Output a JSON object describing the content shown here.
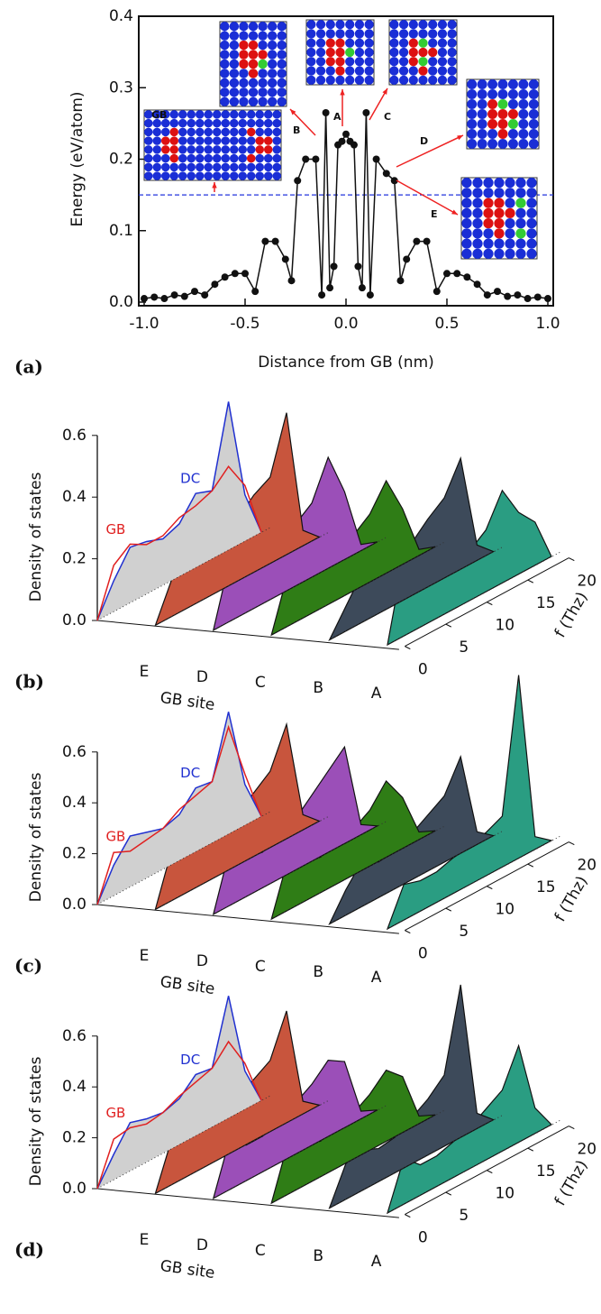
{
  "chart_data": [
    {
      "type": "line",
      "panel_label": "(a)",
      "xlabel": "Distance from GB (nm)",
      "ylabel": "Energy (eV/atom)",
      "x": [
        -1.0,
        -0.95,
        -0.9,
        -0.85,
        -0.8,
        -0.75,
        -0.7,
        -0.65,
        -0.6,
        -0.55,
        -0.5,
        -0.45,
        -0.4,
        -0.35,
        -0.3,
        -0.27,
        -0.24,
        -0.2,
        -0.15,
        -0.12,
        -0.1,
        -0.08,
        -0.06,
        -0.04,
        -0.02,
        0.0,
        0.02,
        0.04,
        0.06,
        0.08,
        0.1,
        0.12,
        0.15,
        0.2,
        0.24,
        0.27,
        0.3,
        0.35,
        0.4,
        0.45,
        0.5,
        0.55,
        0.6,
        0.65,
        0.7,
        0.75,
        0.8,
        0.85,
        0.9,
        0.95,
        1.0
      ],
      "series": [
        {
          "color": "#111111",
          "values": [
            0.005,
            0.007,
            0.005,
            0.01,
            0.008,
            0.015,
            0.01,
            0.025,
            0.035,
            0.04,
            0.04,
            0.015,
            0.085,
            0.085,
            0.06,
            0.03,
            0.17,
            0.2,
            0.2,
            0.01,
            0.265,
            0.02,
            0.05,
            0.22,
            0.225,
            0.235,
            0.225,
            0.22,
            0.05,
            0.02,
            0.265,
            0.01,
            0.2,
            0.18,
            0.17,
            0.03,
            0.06,
            0.085,
            0.085,
            0.015,
            0.04,
            0.04,
            0.035,
            0.025,
            0.01,
            0.015,
            0.008,
            0.01,
            0.005,
            0.007,
            0.005
          ]
        }
      ],
      "hline": 0.15,
      "hline_color": "#2233dd",
      "xlim": [
        -1.0,
        1.0
      ],
      "ylim": [
        0,
        0.4
      ],
      "xticks": [
        {
          "value": -1,
          "label": "-1.0"
        },
        -0.5,
        {
          "value": 0,
          "label": "0.0"
        },
        0.5,
        {
          "value": 1,
          "label": "1.0"
        }
      ],
      "yticks": [
        {
          "value": 0,
          "label": "0.0"
        },
        0.1,
        0.2,
        0.3,
        0.4
      ],
      "annotations": [
        "GB",
        "A",
        "B",
        "C",
        "D",
        "E"
      ]
    },
    {
      "type": "waterfall",
      "panel_label": "(b)",
      "ylabel": "Density of states",
      "category_label": "GB site",
      "xlabel": "f (Thz)",
      "categories": [
        "E",
        "D",
        "C",
        "B",
        "A"
      ],
      "x": [
        0,
        2,
        4,
        6,
        8,
        10,
        12,
        14,
        16,
        18,
        20
      ],
      "ylim": [
        0,
        0.6
      ],
      "yticks": [
        {
          "value": 0,
          "label": "0.0"
        },
        0.2,
        0.4,
        0.6
      ],
      "xticks": [
        0,
        5,
        10,
        15,
        20
      ],
      "series": [
        {
          "name": "GB",
          "color": "#e02020",
          "values": [
            0,
            0.15,
            0.19,
            0.16,
            0.16,
            0.19,
            0.2,
            0.22,
            0.27,
            0.18,
            0
          ]
        },
        {
          "name": "DC",
          "color": "#2030d0",
          "fill": "#d0d0d0",
          "values": [
            0,
            0.1,
            0.18,
            0.17,
            0.15,
            0.17,
            0.24,
            0.22,
            0.48,
            0.15,
            0
          ]
        },
        {
          "color": "#c8553d",
          "values": [
            0,
            0.12,
            0.15,
            0.14,
            0.16,
            0.2,
            0.25,
            0.28,
            0.46,
            0.05,
            0
          ]
        },
        {
          "color": "#9b4fb8",
          "values": [
            0,
            0.2,
            0.12,
            0.14,
            0.16,
            0.2,
            0.24,
            0.36,
            0.22,
            0.02,
            0
          ]
        },
        {
          "color": "#2f7d16",
          "values": [
            0,
            0.17,
            0.16,
            0.13,
            0.15,
            0.18,
            0.22,
            0.3,
            0.18,
            0.02,
            0
          ]
        },
        {
          "color": "#3d4a5a",
          "values": [
            0,
            0.08,
            0.16,
            0.12,
            0.14,
            0.17,
            0.22,
            0.26,
            0.36,
            0.05,
            0
          ]
        },
        {
          "color": "#2a9d82",
          "values": [
            0,
            0.26,
            0.14,
            0.12,
            0.14,
            0.16,
            0.2,
            0.3,
            0.2,
            0.14,
            0
          ]
        }
      ]
    },
    {
      "type": "waterfall",
      "panel_label": "(c)",
      "ylabel": "Density of states",
      "category_label": "GB site",
      "xlabel": "f (Thz)",
      "categories": [
        "E",
        "D",
        "C",
        "B",
        "A"
      ],
      "x": [
        0,
        2,
        4,
        6,
        8,
        10,
        12,
        14,
        16,
        18,
        20
      ],
      "ylim": [
        0,
        0.6
      ],
      "yticks": [
        {
          "value": 0,
          "label": "0.0"
        },
        0.2,
        0.4,
        0.6
      ],
      "xticks": [
        0,
        5,
        10,
        15,
        20
      ],
      "series": [
        {
          "name": "GB",
          "color": "#e02020",
          "values": [
            0,
            0.17,
            0.14,
            0.15,
            0.16,
            0.2,
            0.22,
            0.24,
            0.42,
            0.2,
            0
          ]
        },
        {
          "name": "DC",
          "color": "#2030d0",
          "fill": "#d0d0d0",
          "values": [
            0,
            0.12,
            0.2,
            0.18,
            0.16,
            0.18,
            0.25,
            0.24,
            0.48,
            0.16,
            0
          ]
        },
        {
          "color": "#c8553d",
          "values": [
            0,
            0.2,
            0.17,
            0.15,
            0.17,
            0.2,
            0.25,
            0.3,
            0.45,
            0.06,
            0
          ]
        },
        {
          "color": "#9b4fb8",
          "values": [
            0,
            0.22,
            0.15,
            0.14,
            0.17,
            0.2,
            0.26,
            0.32,
            0.38,
            0.04,
            0
          ]
        },
        {
          "color": "#2f7d16",
          "values": [
            0,
            0.2,
            0.15,
            0.14,
            0.16,
            0.18,
            0.22,
            0.3,
            0.2,
            0.03,
            0
          ]
        },
        {
          "color": "#3d4a5a",
          "values": [
            0,
            0.1,
            0.18,
            0.14,
            0.15,
            0.18,
            0.22,
            0.26,
            0.38,
            0.05,
            0
          ]
        },
        {
          "color": "#2a9d82",
          "values": [
            0,
            0.14,
            0.12,
            0.12,
            0.14,
            0.15,
            0.17,
            0.2,
            0.72,
            0.05,
            0
          ]
        }
      ]
    },
    {
      "type": "waterfall",
      "panel_label": "(d)",
      "ylabel": "Density of states",
      "category_label": "GB site",
      "xlabel": "f (Thz)",
      "categories": [
        "E",
        "D",
        "C",
        "B",
        "A"
      ],
      "x": [
        0,
        2,
        4,
        6,
        8,
        10,
        12,
        14,
        16,
        18,
        20
      ],
      "ylim": [
        0,
        0.6
      ],
      "yticks": [
        {
          "value": 0,
          "label": "0.0"
        },
        0.2,
        0.4,
        0.6
      ],
      "xticks": [
        0,
        5,
        10,
        15,
        20
      ],
      "series": [
        {
          "name": "GB",
          "color": "#e02020",
          "values": [
            0,
            0.16,
            0.17,
            0.15,
            0.16,
            0.19,
            0.21,
            0.23,
            0.3,
            0.18,
            0
          ]
        },
        {
          "name": "DC",
          "color": "#2030d0",
          "fill": "#d0d0d0",
          "values": [
            0,
            0.1,
            0.19,
            0.17,
            0.16,
            0.18,
            0.24,
            0.23,
            0.48,
            0.15,
            0
          ]
        },
        {
          "color": "#c8553d",
          "values": [
            0,
            0.18,
            0.16,
            0.15,
            0.17,
            0.2,
            0.24,
            0.28,
            0.44,
            0.05,
            0
          ]
        },
        {
          "color": "#9b4fb8",
          "values": [
            0,
            0.2,
            0.14,
            0.14,
            0.16,
            0.2,
            0.24,
            0.3,
            0.26,
            0.03,
            0
          ]
        },
        {
          "color": "#2f7d16",
          "values": [
            0,
            0.2,
            0.16,
            0.14,
            0.16,
            0.18,
            0.22,
            0.28,
            0.22,
            0.03,
            0
          ]
        },
        {
          "color": "#3d4a5a",
          "values": [
            0,
            0.14,
            0.16,
            0.13,
            0.14,
            0.18,
            0.22,
            0.28,
            0.6,
            0.06,
            0
          ]
        },
        {
          "color": "#2a9d82",
          "values": [
            0,
            0.18,
            0.12,
            0.12,
            0.14,
            0.16,
            0.2,
            0.24,
            0.38,
            0.1,
            0
          ]
        }
      ]
    }
  ]
}
